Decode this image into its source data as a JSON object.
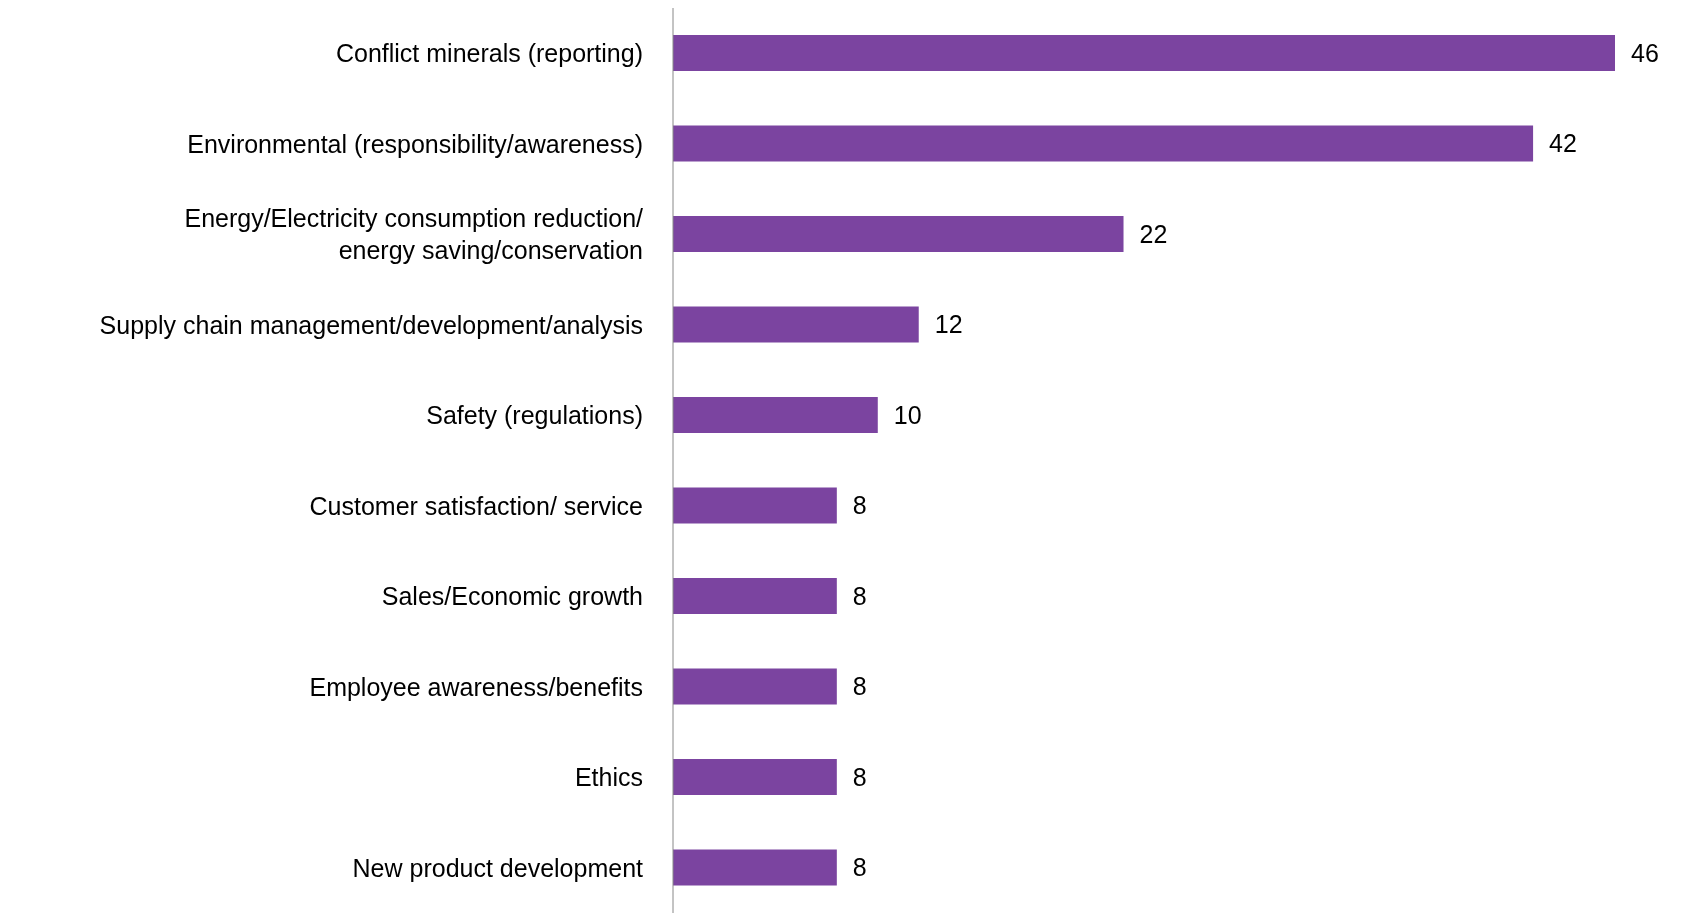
{
  "chart_data": {
    "type": "bar",
    "orientation": "horizontal",
    "categories": [
      "Conflict minerals (reporting)",
      "Environmental (responsibility/awareness)",
      "Energy/Electricity consumption reduction/ energy saving/conservation",
      "Supply chain management/development/analysis",
      "Safety (regulations)",
      "Customer satisfaction/ service",
      "Sales/Economic growth",
      "Employee awareness/benefits",
      "Ethics",
      "New product development"
    ],
    "values": [
      46,
      42,
      22,
      12,
      10,
      8,
      8,
      8,
      8,
      8
    ],
    "color": "#7b44a0",
    "data_labels": true,
    "grid": false
  }
}
